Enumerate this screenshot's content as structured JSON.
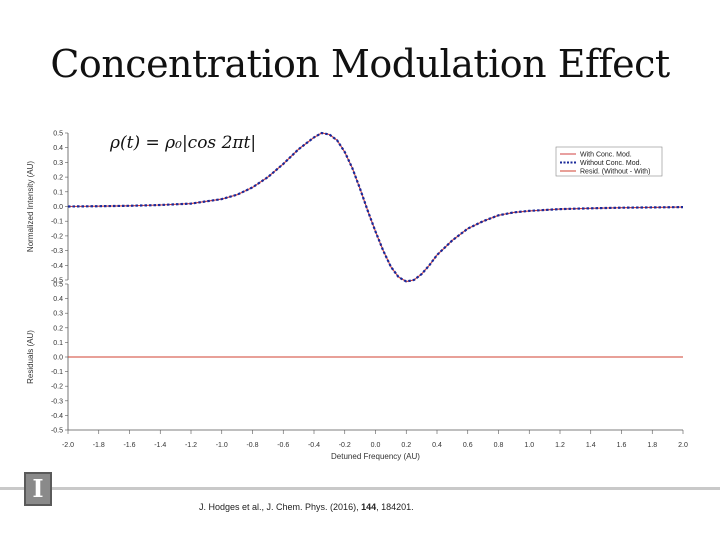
{
  "slide": {
    "title": "Concentration Modulation Effect"
  },
  "citation": {
    "prefix": "J. Hodges et al., J. Chem. Phys. (2016), ",
    "volume": "144",
    "suffix": ", 184201."
  },
  "formula": "ρ(t) = ρ₀|cos 2πt|",
  "colors": {
    "with_conc": "#d04040",
    "without_conc": "#1a2a9a",
    "resid": "#d04030"
  },
  "chart_data": [
    {
      "type": "line",
      "panel": "top",
      "ylabel": "Normalized Intensity (AU)",
      "xlim": [
        -2.0,
        2.0
      ],
      "ylim": [
        -0.5,
        0.5
      ],
      "yticks": [
        "0.5",
        "0.4",
        "0.3",
        "0.2",
        "0.1",
        "0.0",
        "-0.1",
        "-0.2",
        "-0.3",
        "-0.4",
        "-0.5"
      ],
      "legend_position": "top-right",
      "series": [
        {
          "name": "With Conc. Mod.",
          "style": "solid",
          "x": [
            -2.0,
            -1.8,
            -1.6,
            -1.4,
            -1.2,
            -1.0,
            -0.9,
            -0.8,
            -0.7,
            -0.6,
            -0.5,
            -0.4,
            -0.35,
            -0.3,
            -0.25,
            -0.2,
            -0.15,
            -0.1,
            -0.05,
            0.0,
            0.05,
            0.1,
            0.15,
            0.2,
            0.25,
            0.3,
            0.35,
            0.4,
            0.5,
            0.6,
            0.7,
            0.8,
            0.9,
            1.0,
            1.2,
            1.4,
            1.6,
            1.8,
            2.0
          ],
          "y": [
            0.0,
            0.002,
            0.005,
            0.01,
            0.02,
            0.05,
            0.08,
            0.13,
            0.2,
            0.29,
            0.39,
            0.47,
            0.5,
            0.49,
            0.45,
            0.37,
            0.26,
            0.12,
            -0.03,
            -0.17,
            -0.3,
            -0.41,
            -0.48,
            -0.51,
            -0.5,
            -0.46,
            -0.4,
            -0.33,
            -0.23,
            -0.15,
            -0.1,
            -0.06,
            -0.04,
            -0.03,
            -0.018,
            -0.012,
            -0.008,
            -0.006,
            -0.004
          ]
        },
        {
          "name": "Without Conc. Mod.",
          "style": "dotted",
          "x": [
            -2.0,
            -1.8,
            -1.6,
            -1.4,
            -1.2,
            -1.0,
            -0.9,
            -0.8,
            -0.7,
            -0.6,
            -0.5,
            -0.4,
            -0.35,
            -0.3,
            -0.25,
            -0.2,
            -0.15,
            -0.1,
            -0.05,
            0.0,
            0.05,
            0.1,
            0.15,
            0.2,
            0.25,
            0.3,
            0.35,
            0.4,
            0.5,
            0.6,
            0.7,
            0.8,
            0.9,
            1.0,
            1.2,
            1.4,
            1.6,
            1.8,
            2.0
          ],
          "y": [
            0.0,
            0.002,
            0.005,
            0.01,
            0.02,
            0.05,
            0.08,
            0.13,
            0.2,
            0.29,
            0.39,
            0.47,
            0.5,
            0.49,
            0.45,
            0.37,
            0.26,
            0.12,
            -0.03,
            -0.17,
            -0.3,
            -0.41,
            -0.48,
            -0.51,
            -0.5,
            -0.46,
            -0.4,
            -0.33,
            -0.23,
            -0.15,
            -0.1,
            -0.06,
            -0.04,
            -0.03,
            -0.018,
            -0.012,
            -0.008,
            -0.006,
            -0.004
          ]
        },
        {
          "name": "Resid. (Without - With)",
          "style": "solid"
        }
      ]
    },
    {
      "type": "line",
      "panel": "bottom",
      "ylabel": "Residuals (AU)",
      "xlabel": "Detuned Frequency (AU)",
      "xlim": [
        -2.0,
        2.0
      ],
      "ylim": [
        -0.5,
        0.5
      ],
      "yticks": [
        "0.5",
        "0.4",
        "0.3",
        "0.2",
        "0.1",
        "0.0",
        "-0.1",
        "-0.2",
        "-0.3",
        "-0.4",
        "-0.5"
      ],
      "xticks": [
        "-2.0",
        "-1.8",
        "-1.6",
        "-1.4",
        "-1.2",
        "-1.0",
        "-0.8",
        "-0.6",
        "-0.4",
        "-0.2",
        "0.0",
        "0.2",
        "0.4",
        "0.6",
        "0.8",
        "1.0",
        "1.2",
        "1.4",
        "1.6",
        "1.8",
        "2.0"
      ],
      "series": [
        {
          "name": "Resid. (Without - With)",
          "x": [
            -2.0,
            2.0
          ],
          "y": [
            0.0,
            0.0
          ]
        }
      ]
    }
  ]
}
